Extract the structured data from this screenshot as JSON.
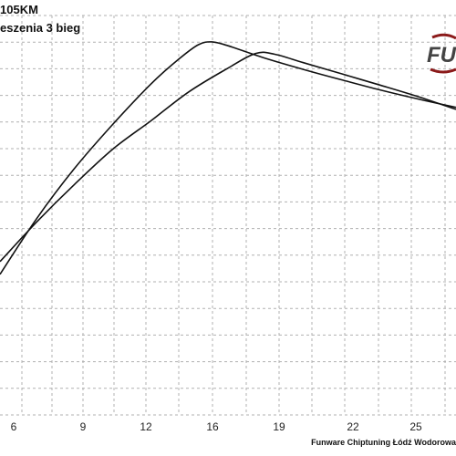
{
  "header": {
    "line1": "105KM",
    "line2": "eszenia 3 bieg"
  },
  "footer": {
    "text": "Funware Chiptuning Łódź Wodorowa"
  },
  "logo": {
    "text": "FU",
    "primary_color": "#8b1a1a",
    "secondary_color": "#444444"
  },
  "colors": {
    "grid": "#b0b0b0",
    "line": "#111111",
    "background": "#ffffff"
  },
  "chart_data": {
    "type": "line",
    "title": "",
    "xlabel": "",
    "ylabel": "",
    "x_ticks": [
      "6",
      "9",
      "12",
      "16",
      "19",
      "22",
      "25"
    ],
    "xlim": [
      3.1,
      27.0
    ],
    "ylim": [
      0,
      100
    ],
    "grid": true,
    "series": [
      {
        "x": [
          3.1,
          5,
          7,
          9,
          11,
          12.5,
          13.5,
          14.2,
          15,
          17,
          19,
          21,
          23,
          25,
          27
        ],
        "y": [
          35.2,
          49,
          61.7,
          72.7,
          82.8,
          89.2,
          92.7,
          93.4,
          92.5,
          89.3,
          86.5,
          83.9,
          81.4,
          79.1,
          77.0
        ]
      },
      {
        "x": [
          3.1,
          5,
          7,
          9,
          11,
          13,
          15,
          16.5,
          17.5,
          19,
          21,
          23,
          25,
          27
        ],
        "y": [
          38.4,
          48.2,
          57.7,
          66.5,
          73.6,
          80.9,
          86.7,
          90.5,
          90.3,
          88.2,
          85.4,
          82.6,
          79.7,
          76.5
        ]
      }
    ]
  }
}
